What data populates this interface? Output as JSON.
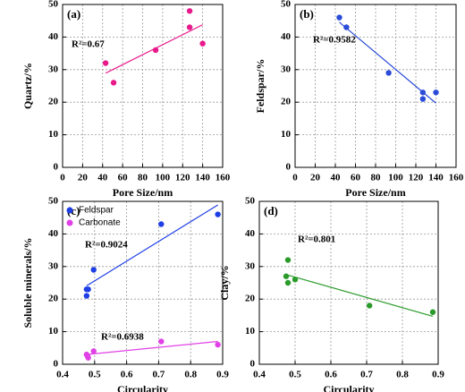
{
  "chart_data": [
    {
      "type": "scatter",
      "label": "(a)",
      "xlabel": "Pore Size/nm",
      "ylabel": "Quartz/%",
      "xlim": [
        0,
        160
      ],
      "xticks": [
        0,
        20,
        40,
        60,
        80,
        100,
        120,
        140,
        160
      ],
      "ylim": [
        0,
        50
      ],
      "yticks": [
        0,
        10,
        20,
        30,
        40,
        50
      ],
      "grid": true,
      "trendline": true,
      "series": [
        {
          "color": "#e8198b",
          "x": [
            43,
            51,
            93,
            127,
            127,
            140
          ],
          "values": [
            32,
            26,
            36,
            48,
            43,
            38
          ]
        }
      ],
      "annotations": [
        "R²=0.67"
      ]
    },
    {
      "type": "scatter",
      "label": "(b)",
      "xlabel": "Pore Size/nm",
      "ylabel": "Feldspar/%",
      "xlim": [
        0,
        160
      ],
      "xticks": [
        0,
        20,
        40,
        60,
        80,
        100,
        120,
        140,
        160
      ],
      "ylim": [
        0,
        50
      ],
      "yticks": [
        0,
        10,
        20,
        30,
        40,
        50
      ],
      "grid": true,
      "trendline": true,
      "series": [
        {
          "color": "#2a4bd8",
          "x": [
            44,
            51,
            93,
            127,
            127,
            140
          ],
          "values": [
            46,
            43,
            29,
            23,
            21,
            23
          ]
        }
      ],
      "annotations": [
        "R²=0.9582"
      ]
    },
    {
      "type": "scatter",
      "label": "(c)",
      "xlabel": "Circularity",
      "ylabel": "Soluble minerals/%",
      "xlim": [
        0.4,
        0.9
      ],
      "xticks": [
        0.4,
        0.5,
        0.6,
        0.7,
        0.8,
        0.9
      ],
      "ylim": [
        0,
        50
      ],
      "yticks": [
        0,
        10,
        20,
        30,
        40,
        50
      ],
      "grid": true,
      "trendline": true,
      "legend": "upper left",
      "series": [
        {
          "name": "Feldspar",
          "color": "#1f3fe6",
          "x": [
            0.475,
            0.48,
            0.475,
            0.497,
            0.708,
            0.885
          ],
          "values": [
            23,
            23,
            21,
            29,
            43,
            46
          ]
        },
        {
          "name": "Carbonate",
          "color": "#e040e6",
          "x": [
            0.475,
            0.48,
            0.478,
            0.497,
            0.708,
            0.885
          ],
          "values": [
            3,
            2,
            2.5,
            4,
            7,
            6
          ]
        }
      ],
      "annotations": [
        "R²=0.9024",
        "R²=0.6938"
      ]
    },
    {
      "type": "scatter",
      "label": "(d)",
      "xlabel": "Circularity",
      "ylabel": "Clay/%",
      "xlim": [
        0.4,
        0.9
      ],
      "xticks": [
        0.4,
        0.5,
        0.6,
        0.7,
        0.8,
        0.9
      ],
      "ylim": [
        0,
        50
      ],
      "yticks": [
        0,
        10,
        20,
        30,
        40,
        50
      ],
      "grid": true,
      "trendline": true,
      "series": [
        {
          "color": "#2a9a2a",
          "x": [
            0.475,
            0.48,
            0.48,
            0.5,
            0.708,
            0.885
          ],
          "values": [
            27,
            32,
            25,
            26,
            18,
            16
          ]
        }
      ],
      "annotations": [
        "R²=0.801"
      ]
    }
  ]
}
